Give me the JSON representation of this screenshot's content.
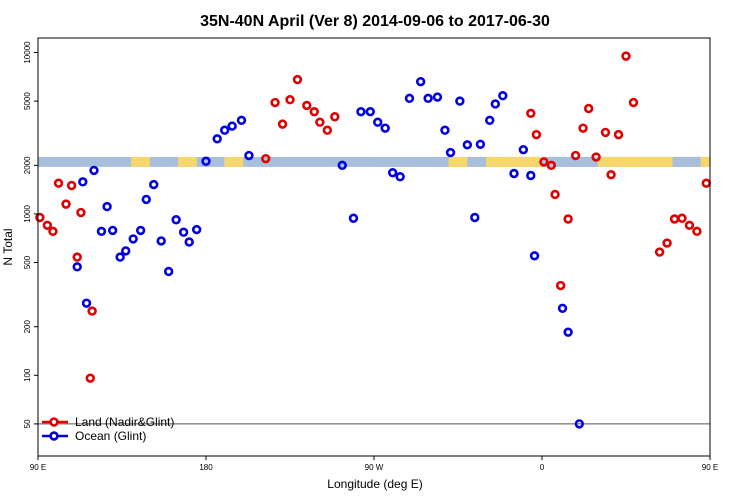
{
  "chart_data": {
    "type": "scatter",
    "title": "35N-40N April (Ver 8)   2014-09-06 to 2017-06-30",
    "xlabel": "Longitude (deg E)",
    "ylabel": "N Total",
    "xlim": [
      90,
      450
    ],
    "ylim_log10": [
      1.5,
      4.09
    ],
    "y_scale": "log",
    "x_ticks": [
      {
        "value": 90,
        "label": "90 E"
      },
      {
        "value": 180,
        "label": "180"
      },
      {
        "value": 270,
        "label": "90 W"
      },
      {
        "value": 360,
        "label": "0"
      },
      {
        "value": 450,
        "label": "90 E"
      },
      {
        "value": 540,
        "label": "180"
      }
    ],
    "y_ticks": [
      {
        "value": 50,
        "label": "50"
      },
      {
        "value": 100,
        "label": "100"
      },
      {
        "value": 200,
        "label": "200"
      },
      {
        "value": 500,
        "label": "500"
      },
      {
        "value": 1000,
        "label": "1000"
      },
      {
        "value": 2000,
        "label": "2000"
      },
      {
        "value": 5000,
        "label": "5000"
      },
      {
        "value": 10000,
        "label": "10000"
      }
    ],
    "reference_line": 50,
    "band": {
      "y": 2100,
      "colors": {
        "land": "#f5d76e",
        "ocean": "#a8bfdc"
      },
      "segments": [
        {
          "from": -90,
          "to": -60,
          "kind": "land"
        },
        {
          "from": -60,
          "to": -50,
          "kind": "ocean"
        },
        {
          "from": -50,
          "to": -20,
          "kind": "land"
        },
        {
          "from": -20,
          "to": 45,
          "kind": "ocean"
        },
        {
          "from": 45,
          "to": 50,
          "kind": "land"
        },
        {
          "from": 50,
          "to": 140,
          "kind": "ocean"
        },
        {
          "from": 140,
          "to": 150,
          "kind": "land"
        },
        {
          "from": 150,
          "to": 165,
          "kind": "ocean"
        },
        {
          "from": 165,
          "to": 175,
          "kind": "land"
        },
        {
          "from": 175,
          "to": 190,
          "kind": "ocean"
        },
        {
          "from": 190,
          "to": 200,
          "kind": "land"
        },
        {
          "from": 200,
          "to": 310,
          "kind": "ocean"
        },
        {
          "from": 310,
          "to": 320,
          "kind": "land"
        },
        {
          "from": 320,
          "to": 330,
          "kind": "ocean"
        },
        {
          "from": 330,
          "to": 360,
          "kind": "land"
        },
        {
          "from": 360,
          "to": 390,
          "kind": "ocean"
        },
        {
          "from": 390,
          "to": 430,
          "kind": "land"
        },
        {
          "from": 430,
          "to": 445,
          "kind": "ocean"
        },
        {
          "from": 445,
          "to": 450,
          "kind": "land"
        }
      ]
    },
    "series": [
      {
        "name": "Land (Nadir&Glint)",
        "color": "#e00000",
        "points": [
          [
            91,
            950
          ],
          [
            95,
            850
          ],
          [
            98,
            780
          ],
          [
            101,
            1550
          ],
          [
            105,
            1150
          ],
          [
            108,
            1500
          ],
          [
            111,
            540
          ],
          [
            113,
            1020
          ],
          [
            118,
            96
          ],
          [
            119,
            250
          ],
          [
            212,
            2200
          ],
          [
            217,
            4900
          ],
          [
            221,
            3600
          ],
          [
            225,
            5100
          ],
          [
            229,
            6800
          ],
          [
            234,
            4700
          ],
          [
            238,
            4300
          ],
          [
            241,
            3700
          ],
          [
            245,
            3300
          ],
          [
            249,
            4000
          ],
          [
            354,
            4200
          ],
          [
            357,
            3100
          ],
          [
            361,
            2100
          ],
          [
            365,
            2000
          ],
          [
            367,
            1320
          ],
          [
            370,
            360
          ],
          [
            374,
            930
          ],
          [
            378,
            2300
          ],
          [
            382,
            3400
          ],
          [
            385,
            4500
          ],
          [
            389,
            2250
          ],
          [
            394,
            3200
          ],
          [
            397,
            1750
          ],
          [
            401,
            3100
          ],
          [
            405,
            9500
          ],
          [
            409,
            4900
          ],
          [
            423,
            580
          ],
          [
            427,
            660
          ],
          [
            431,
            930
          ],
          [
            435,
            940
          ],
          [
            439,
            850
          ],
          [
            443,
            780
          ],
          [
            448,
            1550
          ]
        ]
      },
      {
        "name": "Ocean (Glint)",
        "color": "#0000e0",
        "points": [
          [
            111,
            470
          ],
          [
            114,
            1580
          ],
          [
            116,
            280
          ],
          [
            120,
            1860
          ],
          [
            124,
            780
          ],
          [
            127,
            1110
          ],
          [
            130,
            790
          ],
          [
            134,
            540
          ],
          [
            137,
            590
          ],
          [
            141,
            700
          ],
          [
            145,
            790
          ],
          [
            148,
            1230
          ],
          [
            152,
            1520
          ],
          [
            156,
            680
          ],
          [
            160,
            440
          ],
          [
            164,
            920
          ],
          [
            168,
            770
          ],
          [
            171,
            670
          ],
          [
            175,
            800
          ],
          [
            180,
            2120
          ],
          [
            186,
            2920
          ],
          [
            190,
            3300
          ],
          [
            194,
            3500
          ],
          [
            199,
            3800
          ],
          [
            203,
            2300
          ],
          [
            253,
            2000
          ],
          [
            259,
            940
          ],
          [
            263,
            4300
          ],
          [
            268,
            4300
          ],
          [
            272,
            3700
          ],
          [
            276,
            3400
          ],
          [
            280,
            1800
          ],
          [
            284,
            1700
          ],
          [
            289,
            5200
          ],
          [
            295,
            6600
          ],
          [
            299,
            5200
          ],
          [
            304,
            5300
          ],
          [
            308,
            3300
          ],
          [
            311,
            2400
          ],
          [
            316,
            5000
          ],
          [
            320,
            2680
          ],
          [
            324,
            950
          ],
          [
            327,
            2700
          ],
          [
            332,
            3800
          ],
          [
            335,
            4800
          ],
          [
            339,
            5400
          ],
          [
            345,
            1780
          ],
          [
            350,
            2500
          ],
          [
            354,
            1730
          ],
          [
            356,
            550
          ],
          [
            371,
            260
          ],
          [
            374,
            185
          ],
          [
            380,
            50
          ]
        ]
      }
    ],
    "legend": {
      "position": "bottom-left",
      "entries": [
        {
          "label": "Land (Nadir&Glint)",
          "color": "#e00000"
        },
        {
          "label": "Ocean (Glint)",
          "color": "#0000e0"
        }
      ]
    },
    "grid": false
  }
}
